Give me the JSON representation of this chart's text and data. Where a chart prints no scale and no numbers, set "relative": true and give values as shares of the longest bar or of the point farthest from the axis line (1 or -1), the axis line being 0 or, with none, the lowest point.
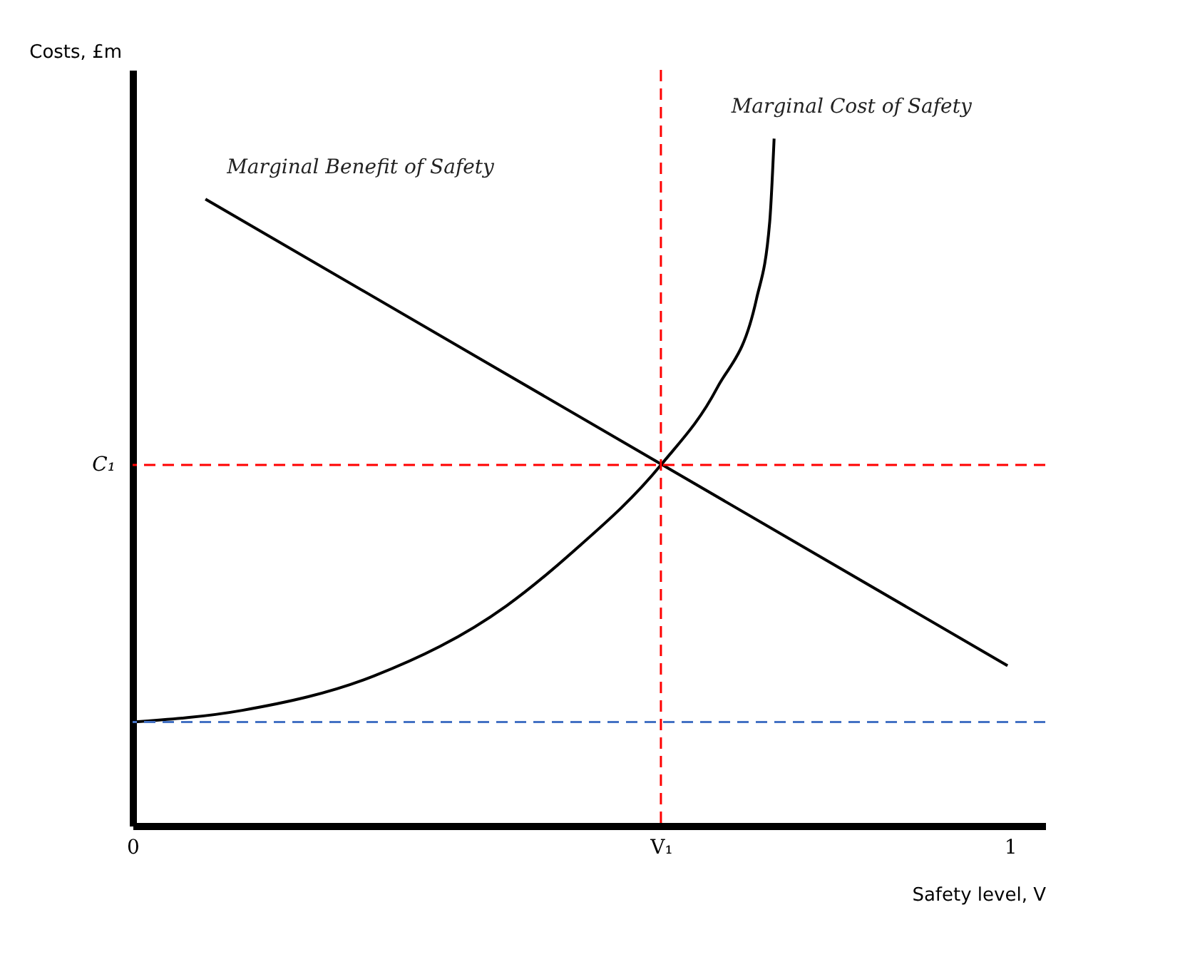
{
  "chart_data": {
    "type": "line",
    "relative": true,
    "xlabel": "Safety level, V",
    "ylabel": "Costs, £m",
    "xlim": [
      0,
      1.04
    ],
    "xticks": [
      0,
      {
        "value": 0.602,
        "label": "V₁"
      },
      1
    ],
    "series": [
      {
        "name": "Marginal Benefit of Safety",
        "color": "#000000",
        "x": [
          0.083,
          0.997
        ],
        "values": [
          0.912,
          0.233
        ]
      },
      {
        "name": "Marginal Cost of Safety",
        "color": "#000000",
        "x": [
          0,
          0.125,
          0.275,
          0.426,
          0.501,
          0.602,
          0.666,
          0.711,
          0.726,
          0.731
        ],
        "values": [
          0.151,
          0.168,
          0.218,
          0.32,
          0.398,
          0.525,
          0.637,
          0.767,
          0.879,
          1.0
        ]
      }
    ],
    "ref_lines": [
      {
        "axis": "y",
        "value": 0.525,
        "label": "C₁",
        "color": "#ff0000",
        "line_style": "dashed"
      },
      {
        "axis": "x",
        "value": 0.602,
        "color": "#ff0000",
        "line_style": "dashed"
      },
      {
        "axis": "y",
        "value": 0.151,
        "color": "#4472c4",
        "line_style": "dashed"
      }
    ],
    "grid": false,
    "line_style": "solid",
    "marker": "none"
  }
}
